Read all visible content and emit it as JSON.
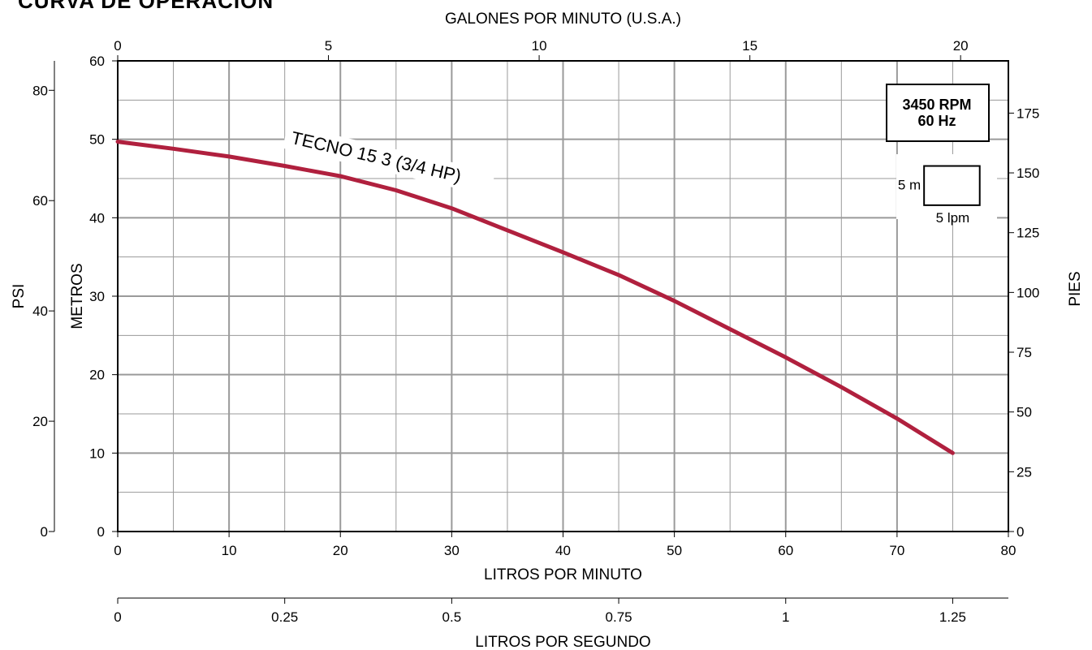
{
  "chart_data": {
    "type": "line",
    "title": "CURVA DE OPERACIÓN",
    "series": [
      {
        "name": "TECNO 15 3 (3/4 HP)",
        "color": "#b0203e",
        "x": [
          0,
          5,
          10,
          15,
          20,
          25,
          30,
          35,
          40,
          45,
          50,
          55,
          60,
          65,
          70,
          75
        ],
        "y": [
          49.7,
          48.8,
          47.8,
          46.6,
          45.3,
          43.5,
          41.2,
          38.4,
          35.6,
          32.7,
          29.4,
          25.8,
          22.2,
          18.4,
          14.4,
          10.0
        ]
      }
    ],
    "annotation": {
      "rpm": "3450 RPM",
      "hz": "60 Hz",
      "scale_m": "5 m",
      "scale_lpm": "5 lpm"
    },
    "axes": {
      "x_bottom": {
        "label": "LITROS POR MINUTO",
        "range": [
          0,
          80
        ],
        "ticks": [
          0,
          10,
          20,
          30,
          40,
          50,
          60,
          70,
          80
        ]
      },
      "x_lps": {
        "label": "LITROS POR SEGUNDO",
        "ticks": [
          {
            "v": 0,
            "t": "0"
          },
          {
            "v": 0.25,
            "t": "0.25"
          },
          {
            "v": 0.5,
            "t": "0.5"
          },
          {
            "v": 0.75,
            "t": "0.75"
          },
          {
            "v": 1,
            "t": "1"
          },
          {
            "v": 1.25,
            "t": "1.25"
          }
        ]
      },
      "x_top": {
        "label": "GALONES POR MINUTO (U.S.A.)",
        "ticks": [
          0,
          5,
          10,
          15,
          20
        ]
      },
      "y_left": {
        "label": "METROS",
        "range": [
          0,
          60
        ],
        "ticks": [
          0,
          10,
          20,
          30,
          40,
          50,
          60
        ]
      },
      "y_psi": {
        "label": "PSI",
        "ticks": [
          0,
          20,
          40,
          60,
          80
        ]
      },
      "y_right": {
        "label": "PIES",
        "ticks": [
          0,
          25,
          50,
          75,
          100,
          125,
          150,
          175
        ]
      }
    },
    "grid": true,
    "colors": {
      "grid": "#9a9a9a",
      "axis": "#000000",
      "curve": "#b0203e"
    }
  }
}
